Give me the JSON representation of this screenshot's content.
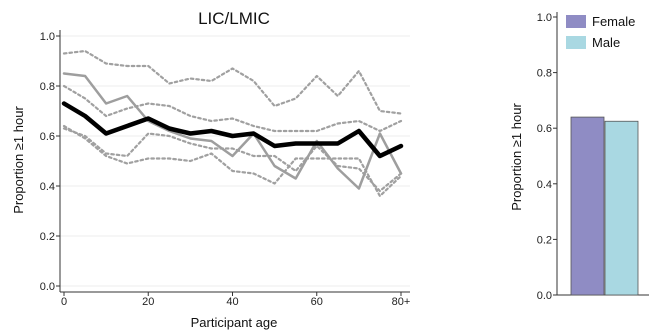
{
  "chart_data": [
    {
      "type": "line",
      "title": "LIC/LMIC",
      "xlabel": "Participant age",
      "ylabel": "Proportion ≥1 hour",
      "ylim": [
        0,
        1.0
      ],
      "xlim": [
        0,
        80
      ],
      "x_ticks": [
        "0",
        "20",
        "40",
        "60",
        "80+"
      ],
      "y_ticks": [
        "0.0",
        "0.2",
        "0.4",
        "0.6",
        "0.8",
        "1.0"
      ],
      "grid": true,
      "series": [
        {
          "style": "black-bold",
          "color": "#000000",
          "x": [
            0,
            5,
            10,
            15,
            20,
            25,
            30,
            35,
            40,
            45,
            50,
            55,
            60,
            65,
            70,
            75,
            80
          ],
          "y": [
            0.73,
            0.68,
            0.61,
            0.64,
            0.67,
            0.63,
            0.61,
            0.62,
            0.6,
            0.61,
            0.56,
            0.57,
            0.57,
            0.57,
            0.62,
            0.52,
            0.56
          ]
        },
        {
          "style": "gray-solid",
          "color": "#9e9e9e",
          "x": [
            0,
            5,
            10,
            15,
            20,
            25,
            30,
            35,
            40,
            45,
            50,
            55,
            60,
            65,
            70,
            75,
            80
          ],
          "y": [
            0.85,
            0.84,
            0.73,
            0.76,
            0.66,
            0.62,
            0.59,
            0.58,
            0.52,
            0.61,
            0.48,
            0.43,
            0.58,
            0.47,
            0.39,
            0.61,
            0.45
          ]
        },
        {
          "style": "gray-dotted",
          "color": "#a0a0a0",
          "x": [
            0,
            5,
            10,
            15,
            20,
            25,
            30,
            35,
            40,
            45,
            50,
            55,
            60,
            65,
            70,
            75,
            80
          ],
          "y": [
            0.93,
            0.94,
            0.89,
            0.88,
            0.88,
            0.81,
            0.83,
            0.82,
            0.87,
            0.82,
            0.72,
            0.75,
            0.84,
            0.76,
            0.86,
            0.7,
            0.69
          ]
        },
        {
          "style": "gray-dotted",
          "color": "#a0a0a0",
          "x": [
            0,
            5,
            10,
            15,
            20,
            25,
            30,
            35,
            40,
            45,
            50,
            55,
            60,
            65,
            70,
            75,
            80
          ],
          "y": [
            0.8,
            0.75,
            0.68,
            0.71,
            0.73,
            0.72,
            0.68,
            0.66,
            0.67,
            0.64,
            0.62,
            0.62,
            0.62,
            0.65,
            0.66,
            0.62,
            0.66
          ]
        },
        {
          "style": "gray-dotted",
          "color": "#a0a0a0",
          "x": [
            0,
            5,
            10,
            15,
            20,
            25,
            30,
            35,
            40,
            45,
            50,
            55,
            60,
            65,
            70,
            75,
            80
          ],
          "y": [
            0.64,
            0.59,
            0.52,
            0.49,
            0.51,
            0.51,
            0.5,
            0.53,
            0.46,
            0.45,
            0.41,
            0.51,
            0.51,
            0.51,
            0.51,
            0.36,
            0.44
          ]
        },
        {
          "style": "gray-dotted",
          "color": "#a0a0a0",
          "x": [
            0,
            5,
            10,
            15,
            20,
            25,
            30,
            35,
            40,
            45,
            50,
            55,
            60,
            65,
            70,
            75,
            80
          ],
          "y": [
            0.63,
            0.6,
            0.53,
            0.52,
            0.61,
            0.6,
            0.57,
            0.55,
            0.55,
            0.52,
            0.52,
            0.46,
            0.56,
            0.48,
            0.47,
            0.38,
            0.45
          ]
        }
      ]
    },
    {
      "type": "bar",
      "title": "",
      "ylabel": "Proportion ≥1 hour",
      "ylim": [
        0,
        1.0
      ],
      "y_ticks": [
        "0.0",
        "0.2",
        "0.4",
        "0.6",
        "0.8",
        "1.0"
      ],
      "grid": false,
      "legend_position": "top-left",
      "categories": [
        "Female",
        "Male"
      ],
      "values": [
        0.64,
        0.625
      ],
      "colors": [
        "#8f8cc4",
        "#a9d8e2"
      ]
    }
  ]
}
